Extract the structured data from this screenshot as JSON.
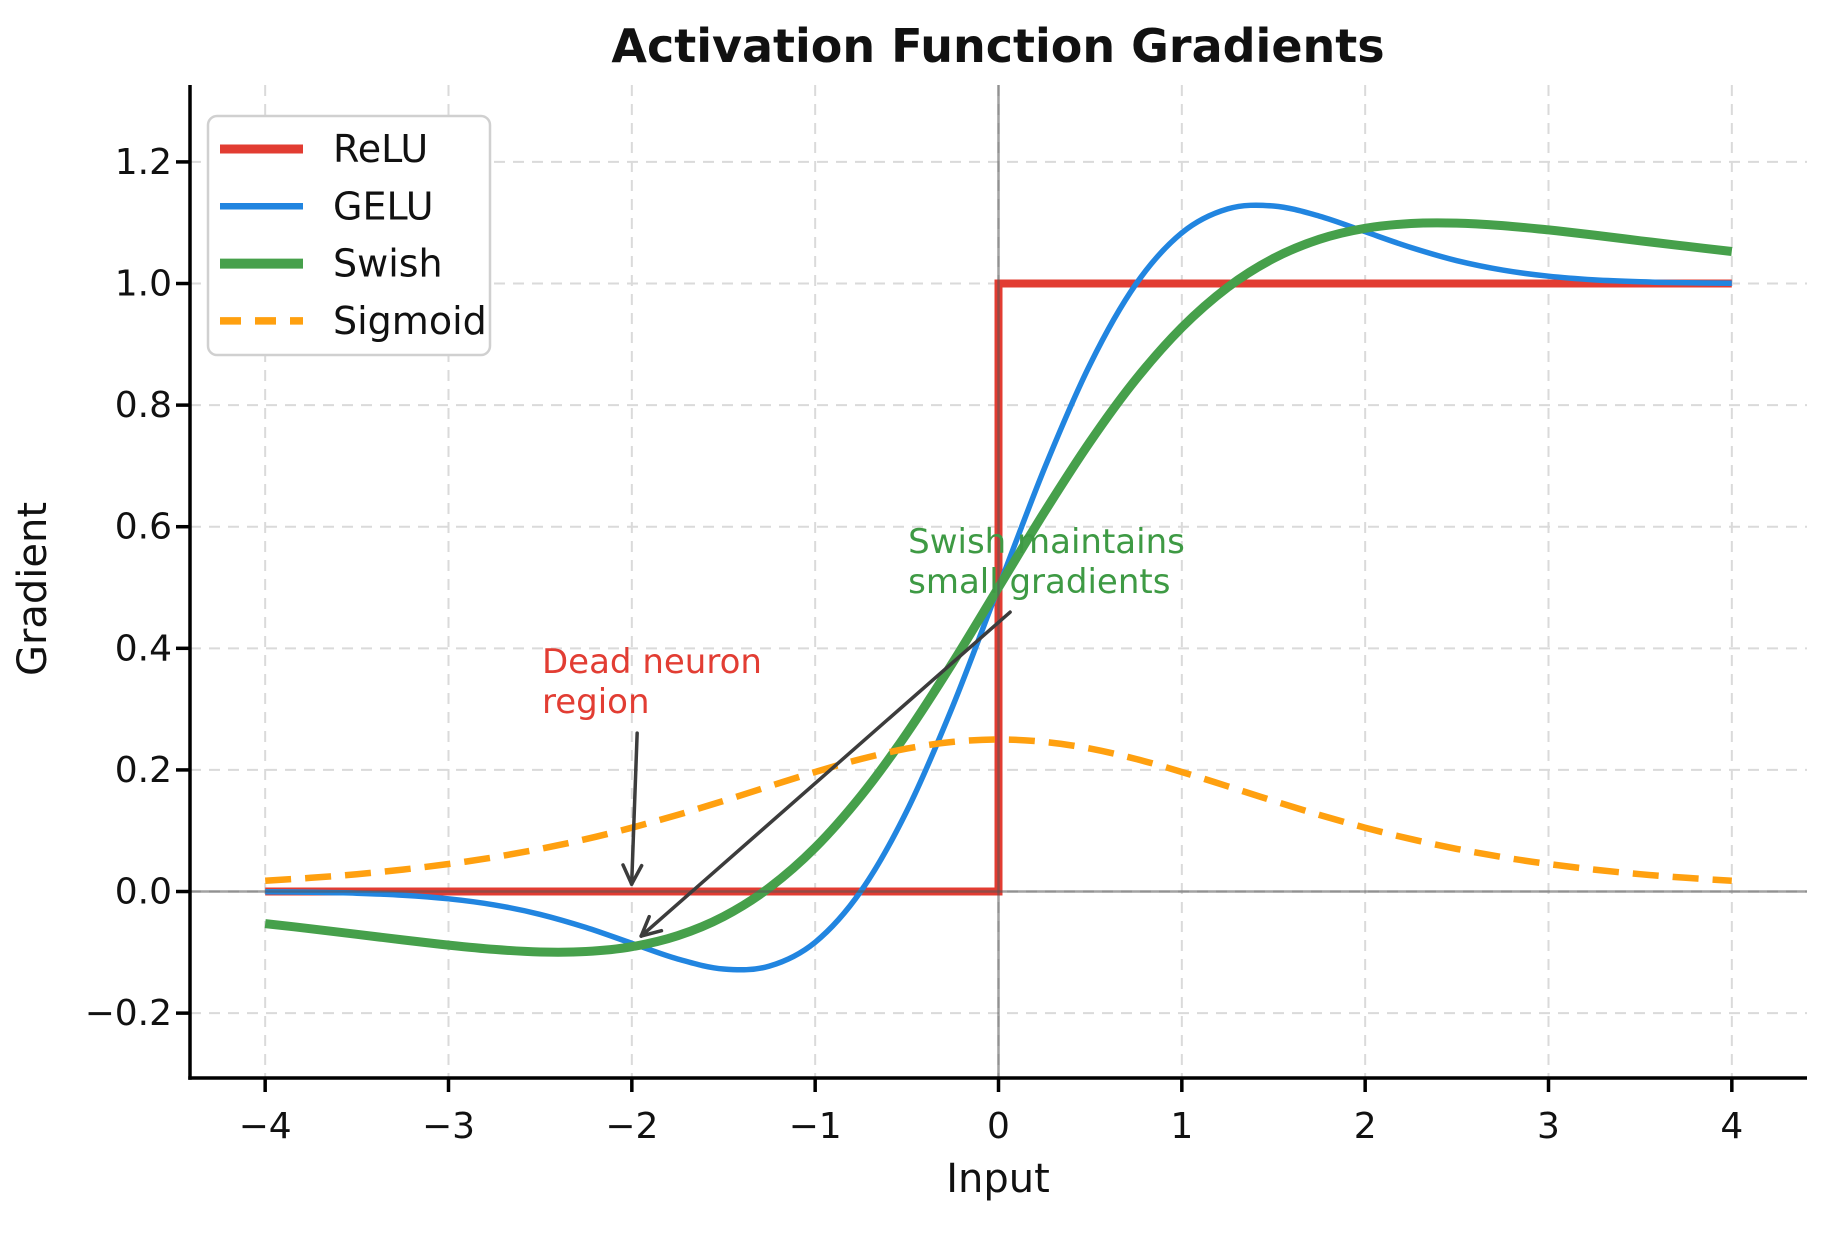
{
  "chart_data": {
    "type": "line",
    "title": "Activation Function Gradients",
    "xlabel": "Input",
    "ylabel": "Gradient",
    "xlim": [
      -4.41,
      4.41
    ],
    "ylim": [
      -0.3067,
      1.3265
    ],
    "grid": true,
    "zero_lines": true,
    "xticks": [
      {
        "v": -4,
        "label": "−4"
      },
      {
        "v": -3,
        "label": "−3"
      },
      {
        "v": -2,
        "label": "−2"
      },
      {
        "v": -1,
        "label": "−1"
      },
      {
        "v": 0,
        "label": "0"
      },
      {
        "v": 1,
        "label": "1"
      },
      {
        "v": 2,
        "label": "2"
      },
      {
        "v": 3,
        "label": "3"
      },
      {
        "v": 4,
        "label": "4"
      }
    ],
    "yticks": [
      {
        "v": -0.2,
        "label": "−0.2"
      },
      {
        "v": 0.0,
        "label": "0.0"
      },
      {
        "v": 0.2,
        "label": "0.2"
      },
      {
        "v": 0.4,
        "label": "0.4"
      },
      {
        "v": 0.6,
        "label": "0.6"
      },
      {
        "v": 0.8,
        "label": "0.8"
      },
      {
        "v": 1.0,
        "label": "1.0"
      },
      {
        "v": 1.2,
        "label": "1.2"
      }
    ],
    "legend_position": "upper left",
    "series": [
      {
        "name": "ReLU",
        "color": "#e23c32",
        "style": "solid",
        "width": 8,
        "smooth": false,
        "x": [
          -4,
          0,
          0,
          4
        ],
        "y": [
          0,
          0,
          1,
          1
        ]
      },
      {
        "name": "GELU",
        "color": "#2185e0",
        "style": "solid",
        "width": 5.5,
        "smooth": true,
        "x": [
          -4,
          -3.75,
          -3.5,
          -3.25,
          -3,
          -2.75,
          -2.5,
          -2.25,
          -2,
          -1.75,
          -1.5,
          -1.25,
          -1,
          -0.75,
          -0.5,
          -0.25,
          0,
          0.25,
          0.5,
          0.75,
          1,
          1.25,
          1.5,
          1.75,
          2,
          2.25,
          2.5,
          2.75,
          3,
          3.25,
          3.5,
          3.75,
          4
        ],
        "y": [
          -0.0005,
          -0.0012,
          -0.0028,
          -0.006,
          -0.012,
          -0.022,
          -0.0376,
          -0.0592,
          -0.0852,
          -0.1109,
          -0.1275,
          -0.1227,
          -0.0833,
          0.0008,
          0.1325,
          0.3046,
          0.5,
          0.6954,
          0.8675,
          0.9992,
          1.0833,
          1.1227,
          1.1275,
          1.1109,
          1.0852,
          1.0592,
          1.0376,
          1.022,
          1.012,
          1.006,
          1.0028,
          1.0012,
          1.0005
        ]
      },
      {
        "name": "Swish",
        "color": "#46a04b",
        "style": "solid",
        "width": 9,
        "smooth": true,
        "x": [
          -4,
          -3.75,
          -3.5,
          -3.25,
          -3,
          -2.75,
          -2.5,
          -2.25,
          -2,
          -1.75,
          -1.5,
          -1.25,
          -1,
          -0.75,
          -0.5,
          -0.25,
          0,
          0.25,
          0.5,
          0.75,
          1,
          1.25,
          1.5,
          1.75,
          2,
          2.25,
          2.5,
          2.75,
          3,
          3.25,
          3.5,
          3.75,
          4
        ],
        "y": [
          -0.0527,
          -0.0613,
          -0.0703,
          -0.0796,
          -0.0881,
          -0.0952,
          -0.0994,
          -0.0987,
          -0.0908,
          -0.0727,
          -0.0413,
          0.0063,
          0.0723,
          0.1574,
          0.26,
          0.3763,
          0.5,
          0.6237,
          0.74,
          0.8426,
          0.9277,
          0.9937,
          1.0413,
          1.0727,
          1.0908,
          1.0987,
          1.0994,
          1.0952,
          1.0881,
          1.0796,
          1.0703,
          1.0613,
          1.0527
        ]
      },
      {
        "name": "Sigmoid",
        "color": "#ffa00f",
        "style": "dashed",
        "width": 6.5,
        "smooth": true,
        "x": [
          -4,
          -3.75,
          -3.5,
          -3.25,
          -3,
          -2.75,
          -2.5,
          -2.25,
          -2,
          -1.75,
          -1.5,
          -1.25,
          -1,
          -0.75,
          -0.5,
          -0.25,
          0,
          0.25,
          0.5,
          0.75,
          1,
          1.25,
          1.5,
          1.75,
          2,
          2.25,
          2.5,
          2.75,
          3,
          3.25,
          3.5,
          3.75,
          4
        ],
        "y": [
          0.0177,
          0.0225,
          0.0285,
          0.036,
          0.0452,
          0.0565,
          0.0701,
          0.0862,
          0.105,
          0.1261,
          0.1491,
          0.1731,
          0.1966,
          0.2179,
          0.235,
          0.2461,
          0.25,
          0.2461,
          0.235,
          0.2179,
          0.1966,
          0.1731,
          0.1491,
          0.1261,
          0.105,
          0.0862,
          0.0701,
          0.0565,
          0.0452,
          0.036,
          0.0285,
          0.0225,
          0.0177
        ]
      }
    ],
    "annotations": [
      {
        "id": "dead-neuron",
        "lines": [
          "Dead neuron",
          "region"
        ],
        "color": "#e23d33",
        "text_xy": [
          -2.49,
          0.359
        ],
        "arrow_from": [
          -1.971,
          0.2605
        ],
        "arrow_to": [
          -2.001,
          0.0122
        ],
        "arrow_color": "#3c3c3c"
      },
      {
        "id": "swish-gradients",
        "lines": [
          "Swish maintains",
          "small gradients"
        ],
        "color": "#3e9a44",
        "text_xy": [
          -0.493,
          0.5565
        ],
        "arrow_from": [
          0.0633,
          0.4595
        ],
        "arrow_to": [
          -1.949,
          -0.0733
        ],
        "arrow_color": "#3c3c3c"
      }
    ]
  }
}
